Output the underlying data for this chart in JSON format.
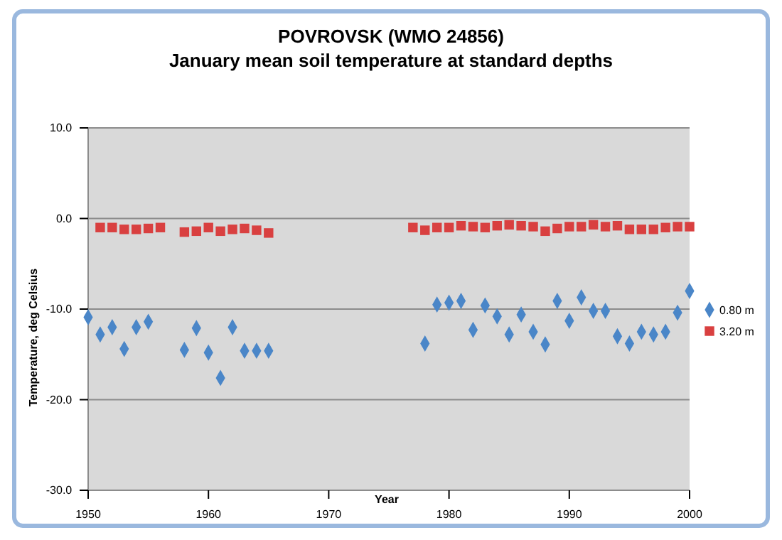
{
  "chart_data": {
    "type": "scatter",
    "title": "POVROVSK (WMO 24856)",
    "subtitle": "January mean soil temperature at standard depths",
    "xlabel": "Year",
    "ylabel": "Temperature, deg Celsius",
    "xlim": [
      1950,
      2000
    ],
    "xticks": [
      1950,
      1960,
      1970,
      1980,
      1990,
      2000
    ],
    "ylim": [
      -30,
      10
    ],
    "yticks": [
      {
        "value": -30,
        "label": "-30.0"
      },
      {
        "value": -20,
        "label": "-20.0"
      },
      {
        "value": -10,
        "label": "-10.0"
      },
      {
        "value": 0,
        "label": "0.0"
      },
      {
        "value": 10,
        "label": "10.0"
      }
    ],
    "grid": "y",
    "legend": "right",
    "series": [
      {
        "name": "0.80 m",
        "color": "#4a86c8",
        "marker": "diamond",
        "x": [
          1950,
          1951,
          1952,
          1953,
          1954,
          1955,
          1958,
          1959,
          1960,
          1961,
          1962,
          1963,
          1964,
          1965,
          1978,
          1979,
          1980,
          1981,
          1982,
          1983,
          1984,
          1985,
          1986,
          1987,
          1988,
          1989,
          1990,
          1991,
          1992,
          1993,
          1994,
          1995,
          1996,
          1997,
          1998,
          1999,
          2000
        ],
        "values": [
          -10.9,
          -12.8,
          -12.0,
          -14.4,
          -12.0,
          -11.4,
          -14.5,
          -12.1,
          -14.8,
          -17.6,
          -12.0,
          -14.6,
          -14.6,
          -14.6,
          -13.8,
          -9.5,
          -9.3,
          -9.1,
          -12.3,
          -9.6,
          -10.8,
          -12.8,
          -10.6,
          -12.5,
          -13.9,
          -9.1,
          -11.3,
          -8.7,
          -10.2,
          -10.2,
          -13.0,
          -13.8,
          -12.5,
          -12.8,
          -12.5,
          -10.4,
          -8.0
        ]
      },
      {
        "name": "3.20 m",
        "color": "#d94040",
        "marker": "square",
        "x": [
          1951,
          1952,
          1953,
          1954,
          1955,
          1956,
          1958,
          1959,
          1960,
          1961,
          1962,
          1963,
          1964,
          1965,
          1977,
          1978,
          1979,
          1980,
          1981,
          1982,
          1983,
          1984,
          1985,
          1986,
          1987,
          1988,
          1989,
          1990,
          1991,
          1992,
          1993,
          1994,
          1995,
          1996,
          1997,
          1998,
          1999,
          2000
        ],
        "values": [
          -1.0,
          -1.0,
          -1.2,
          -1.2,
          -1.1,
          -1.0,
          -1.5,
          -1.4,
          -1.0,
          -1.4,
          -1.2,
          -1.1,
          -1.3,
          -1.6,
          -1.0,
          -1.3,
          -1.0,
          -1.0,
          -0.8,
          -0.9,
          -1.0,
          -0.8,
          -0.7,
          -0.8,
          -0.9,
          -1.4,
          -1.1,
          -0.9,
          -0.9,
          -0.7,
          -0.9,
          -0.8,
          -1.2,
          -1.2,
          -1.2,
          -1.0,
          -0.9,
          -0.9
        ]
      }
    ]
  }
}
